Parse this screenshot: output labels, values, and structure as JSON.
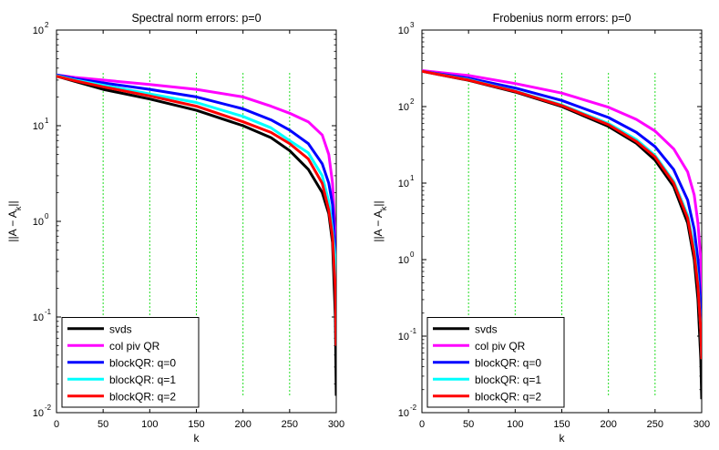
{
  "chart_data": [
    {
      "id": "spectral",
      "type": "line",
      "title": "Spectral norm errors: p=0",
      "xlabel": "k",
      "ylabel": "||A − A_k||",
      "ylabel_main": "||A − A",
      "ylabel_sub": "k",
      "ylabel_end": "||",
      "xscale": "linear",
      "yscale": "log",
      "xlim": [
        0,
        300
      ],
      "ylim": [
        0.01,
        100
      ],
      "xticks": [
        "0",
        "50",
        "100",
        "150",
        "200",
        "250",
        "300"
      ],
      "yticks": [
        {
          "base": "10",
          "exp": "-2",
          "value": 0.01
        },
        {
          "base": "10",
          "exp": "-1",
          "value": 0.1
        },
        {
          "base": "10",
          "exp": "0",
          "value": 1
        },
        {
          "base": "10",
          "exp": "1",
          "value": 10
        },
        {
          "base": "10",
          "exp": "2",
          "value": 100
        }
      ],
      "vlines": [
        50,
        100,
        150,
        200,
        250
      ],
      "legend_position": "bottom-left",
      "series": [
        {
          "name": "svds",
          "color": "#000000",
          "x": [
            0,
            20,
            50,
            100,
            150,
            200,
            230,
            250,
            270,
            285,
            292,
            296,
            299,
            300
          ],
          "y": [
            33,
            29,
            24,
            19,
            14.5,
            10,
            7.5,
            5.5,
            3.5,
            2.0,
            1.2,
            0.6,
            0.1,
            0.015
          ]
        },
        {
          "name": "col piv QR",
          "color": "#ff00ff",
          "x": [
            0,
            20,
            50,
            100,
            150,
            200,
            230,
            250,
            270,
            285,
            292,
            296,
            299,
            300
          ],
          "y": [
            34,
            32,
            30,
            27,
            24,
            20,
            16,
            13.5,
            11,
            8,
            5,
            2.5,
            0.7,
            0.3
          ]
        },
        {
          "name": "blockQR: q=0",
          "color": "#0000ff",
          "x": [
            0,
            20,
            50,
            100,
            150,
            200,
            230,
            250,
            270,
            285,
            292,
            296,
            299,
            300
          ],
          "y": [
            34,
            31,
            28,
            24,
            20,
            15,
            11.5,
            9,
            6.5,
            4,
            2.5,
            1.5,
            0.5,
            0.25
          ]
        },
        {
          "name": "blockQR: q=1",
          "color": "#00ffff",
          "x": [
            0,
            20,
            50,
            100,
            150,
            200,
            230,
            250,
            270,
            285,
            292,
            296,
            299,
            300
          ],
          "y": [
            33.5,
            30,
            26.5,
            21.5,
            17.5,
            12.5,
            9.5,
            7,
            5.2,
            3,
            1.6,
            0.8,
            0.4,
            0.2
          ]
        },
        {
          "name": "blockQR: q=2",
          "color": "#ff0000",
          "x": [
            0,
            20,
            50,
            100,
            150,
            200,
            230,
            250,
            270,
            285,
            292,
            296,
            299,
            300
          ],
          "y": [
            33,
            29.5,
            25.5,
            20.5,
            16,
            11,
            8.5,
            6.5,
            4.5,
            2.5,
            1.3,
            0.7,
            0.2,
            0.05
          ]
        }
      ]
    },
    {
      "id": "frobenius",
      "type": "line",
      "title": "Frobenius norm errors: p=0",
      "xlabel": "k",
      "ylabel": "||A − A_k||",
      "ylabel_main": "||A − A",
      "ylabel_sub": "k",
      "ylabel_end": "||",
      "xscale": "linear",
      "yscale": "log",
      "xlim": [
        0,
        300
      ],
      "ylim": [
        0.01,
        1000
      ],
      "xticks": [
        "0",
        "50",
        "100",
        "150",
        "200",
        "250",
        "300"
      ],
      "yticks": [
        {
          "base": "10",
          "exp": "-2",
          "value": 0.01
        },
        {
          "base": "10",
          "exp": "-1",
          "value": 0.1
        },
        {
          "base": "10",
          "exp": "0",
          "value": 1
        },
        {
          "base": "10",
          "exp": "1",
          "value": 10
        },
        {
          "base": "10",
          "exp": "2",
          "value": 100
        },
        {
          "base": "10",
          "exp": "3",
          "value": 1000
        }
      ],
      "vlines": [
        50,
        100,
        150,
        200,
        250
      ],
      "legend_position": "bottom-left",
      "series": [
        {
          "name": "svds",
          "color": "#000000",
          "x": [
            0,
            50,
            100,
            150,
            200,
            230,
            250,
            270,
            285,
            292,
            296,
            299,
            300
          ],
          "y": [
            290,
            220,
            155,
            100,
            55,
            33,
            20,
            9,
            3,
            1.0,
            0.3,
            0.05,
            0.015
          ]
        },
        {
          "name": "col piv QR",
          "color": "#ff00ff",
          "x": [
            0,
            50,
            100,
            150,
            200,
            230,
            250,
            270,
            285,
            292,
            296,
            299,
            300
          ],
          "y": [
            295,
            255,
            200,
            150,
            98,
            68,
            48,
            28,
            14,
            7,
            3,
            1.0,
            0.25
          ]
        },
        {
          "name": "blockQR: q=0",
          "color": "#0000ff",
          "x": [
            0,
            50,
            100,
            150,
            200,
            230,
            250,
            270,
            285,
            292,
            296,
            299,
            300
          ],
          "y": [
            290,
            235,
            175,
            120,
            72,
            46,
            30,
            15,
            6,
            2.5,
            1.0,
            0.25,
            0.07
          ]
        },
        {
          "name": "blockQR: q=1",
          "color": "#00ffff",
          "x": [
            0,
            50,
            100,
            150,
            200,
            230,
            250,
            270,
            285,
            292,
            296,
            299,
            300
          ],
          "y": [
            290,
            225,
            160,
            105,
            60,
            37,
            23,
            10.5,
            3.8,
            1.4,
            0.5,
            0.12,
            0.05
          ]
        },
        {
          "name": "blockQR: q=2",
          "color": "#ff0000",
          "x": [
            0,
            50,
            100,
            150,
            200,
            230,
            250,
            270,
            285,
            292,
            296,
            299,
            300
          ],
          "y": [
            290,
            222,
            158,
            103,
            58,
            35,
            22,
            10,
            3.5,
            1.2,
            0.45,
            0.12,
            0.05
          ]
        }
      ]
    }
  ]
}
